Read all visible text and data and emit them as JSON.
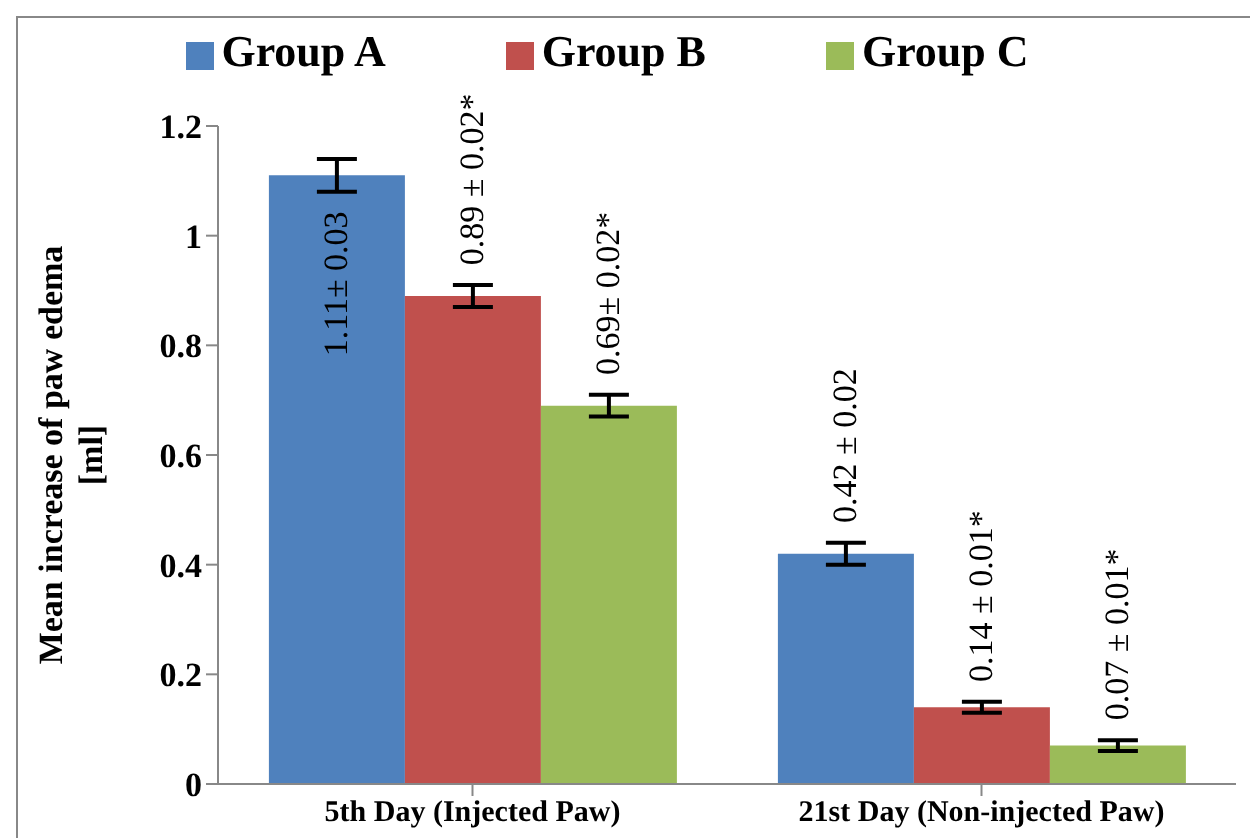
{
  "chart_data": {
    "type": "bar",
    "ylabel": "Mean increase of paw edema [ml]",
    "categories": [
      "5th Day (Injected Paw)",
      "21st Day (Non-injected Paw)"
    ],
    "series": [
      {
        "name": "Group A",
        "color": "#4f81bd",
        "values": [
          1.11,
          0.42
        ],
        "errors": [
          0.03,
          0.02
        ],
        "value_labels": [
          "1.11± 0.03",
          "0.42 ± 0.02"
        ]
      },
      {
        "name": "Group B",
        "color": "#c0504d",
        "values": [
          0.89,
          0.14
        ],
        "errors": [
          0.02,
          0.01
        ],
        "value_labels": [
          "0.89 ± 0.02*",
          "0.14 ± 0.01*"
        ]
      },
      {
        "name": "Group C",
        "color": "#9bbb59",
        "values": [
          0.69,
          0.07
        ],
        "errors": [
          0.02,
          0.01
        ],
        "value_labels": [
          "0.69± 0.02*",
          "0.07 ± 0.01*"
        ]
      }
    ],
    "ylim": [
      0,
      1.2
    ],
    "yticks": [
      0,
      0.2,
      0.4,
      0.6,
      0.8,
      1,
      1.2
    ],
    "grid": false,
    "legend": "top"
  }
}
